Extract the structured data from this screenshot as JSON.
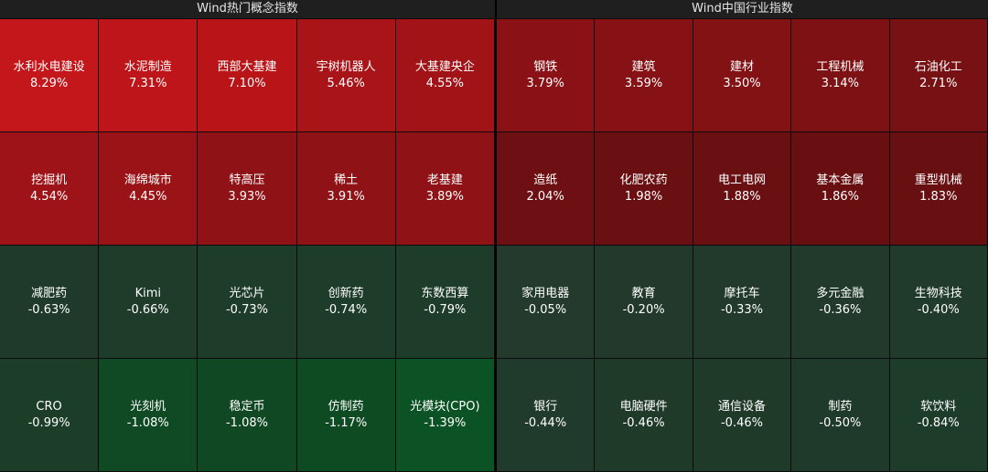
{
  "chart_data": [
    {
      "type": "heatmap",
      "title": "Wind热门概念指数",
      "rows": 4,
      "cols": 5,
      "items": [
        {
          "name": "水利水电建设",
          "label": "8.29%",
          "value": 8.29,
          "color": "#c3171c"
        },
        {
          "name": "水泥制造",
          "label": "7.31%",
          "value": 7.31,
          "color": "#bd1519"
        },
        {
          "name": "西部大基建",
          "label": "7.10%",
          "value": 7.1,
          "color": "#b91519"
        },
        {
          "name": "宇树机器人",
          "label": "5.46%",
          "value": 5.46,
          "color": "#a81418"
        },
        {
          "name": "大基建央企",
          "label": "4.55%",
          "value": 4.55,
          "color": "#a11317"
        },
        {
          "name": "挖掘机",
          "label": "4.54%",
          "value": 4.54,
          "color": "#9d1317"
        },
        {
          "name": "海绵城市",
          "label": "4.45%",
          "value": 4.45,
          "color": "#991317"
        },
        {
          "name": "特高压",
          "label": "3.93%",
          "value": 3.93,
          "color": "#8f1216"
        },
        {
          "name": "稀土",
          "label": "3.91%",
          "value": 3.91,
          "color": "#8f1216"
        },
        {
          "name": "老基建",
          "label": "3.89%",
          "value": 3.89,
          "color": "#8e1216"
        },
        {
          "name": "减肥药",
          "label": "-0.63%",
          "value": -0.63,
          "color": "#1f3a2a"
        },
        {
          "name": "Kimi",
          "label": "-0.66%",
          "value": -0.66,
          "color": "#1f3b2a"
        },
        {
          "name": "光芯片",
          "label": "-0.73%",
          "value": -0.73,
          "color": "#1e3c2a"
        },
        {
          "name": "创新药",
          "label": "-0.74%",
          "value": -0.74,
          "color": "#1e3c2a"
        },
        {
          "name": "东数西算",
          "label": "-0.79%",
          "value": -0.79,
          "color": "#1d3d2a"
        },
        {
          "name": "CRO",
          "label": "-0.99%",
          "value": -0.99,
          "color": "#1c3d28"
        },
        {
          "name": "光刻机",
          "label": "-1.08%",
          "value": -1.08,
          "color": "#0f4a24"
        },
        {
          "name": "稳定币",
          "label": "-1.08%",
          "value": -1.08,
          "color": "#104823"
        },
        {
          "name": "仿制药",
          "label": "-1.17%",
          "value": -1.17,
          "color": "#0e4b23"
        },
        {
          "name": "光模块(CPO)",
          "label": "-1.39%",
          "value": -1.39,
          "color": "#0b5224"
        }
      ]
    },
    {
      "type": "heatmap",
      "title": "Wind中国行业指数",
      "rows": 4,
      "cols": 5,
      "items": [
        {
          "name": "钢铁",
          "label": "3.79%",
          "value": 3.79,
          "color": "#8a1216"
        },
        {
          "name": "建筑",
          "label": "3.59%",
          "value": 3.59,
          "color": "#861215"
        },
        {
          "name": "建材",
          "label": "3.50%",
          "value": 3.5,
          "color": "#831215"
        },
        {
          "name": "工程机械",
          "label": "3.14%",
          "value": 3.14,
          "color": "#7e1114"
        },
        {
          "name": "石油化工",
          "label": "2.71%",
          "value": 2.71,
          "color": "#771114"
        },
        {
          "name": "造纸",
          "label": "2.04%",
          "value": 2.04,
          "color": "#6e1013"
        },
        {
          "name": "化肥农药",
          "label": "1.98%",
          "value": 1.98,
          "color": "#6b1012"
        },
        {
          "name": "电工电网",
          "label": "1.88%",
          "value": 1.88,
          "color": "#6a1012"
        },
        {
          "name": "基本金属",
          "label": "1.86%",
          "value": 1.86,
          "color": "#690f12"
        },
        {
          "name": "重型机械",
          "label": "1.83%",
          "value": 1.83,
          "color": "#680f12"
        },
        {
          "name": "家用电器",
          "label": "-0.05%",
          "value": -0.05,
          "color": "#233a2c"
        },
        {
          "name": "教育",
          "label": "-0.20%",
          "value": -0.2,
          "color": "#22392b"
        },
        {
          "name": "摩托车",
          "label": "-0.33%",
          "value": -0.33,
          "color": "#213a2b"
        },
        {
          "name": "多元金融",
          "label": "-0.36%",
          "value": -0.36,
          "color": "#213a2b"
        },
        {
          "name": "生物科技",
          "label": "-0.40%",
          "value": -0.4,
          "color": "#203a2b"
        },
        {
          "name": "银行",
          "label": "-0.44%",
          "value": -0.44,
          "color": "#203a2b"
        },
        {
          "name": "电脑硬件",
          "label": "-0.46%",
          "value": -0.46,
          "color": "#203a2a"
        },
        {
          "name": "通信设备",
          "label": "-0.46%",
          "value": -0.46,
          "color": "#203a2a"
        },
        {
          "name": "制药",
          "label": "-0.50%",
          "value": -0.5,
          "color": "#1f3a2a"
        },
        {
          "name": "软饮料",
          "label": "-0.84%",
          "value": -0.84,
          "color": "#1d3c2a"
        }
      ]
    }
  ]
}
